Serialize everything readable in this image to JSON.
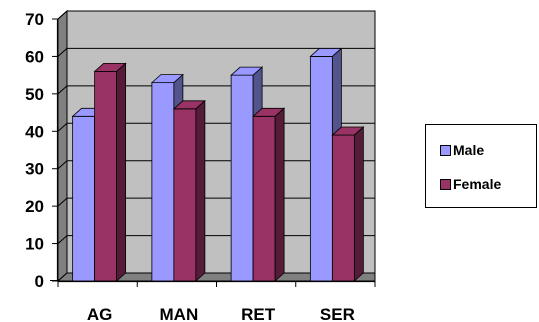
{
  "chart_data": {
    "type": "bar",
    "categories": [
      "AG",
      "MAN",
      "RET",
      "SER"
    ],
    "series": [
      {
        "name": "Male",
        "values": [
          44,
          53,
          55,
          60
        ],
        "color": "#9999ff"
      },
      {
        "name": "Female",
        "values": [
          56,
          46,
          44,
          39
        ],
        "color": "#993366"
      }
    ],
    "ylim": [
      0,
      70
    ],
    "yticks": [
      "0",
      "10",
      "20",
      "30",
      "40",
      "50",
      "60",
      "70"
    ],
    "grid": true,
    "legend": "right",
    "title": "",
    "xlabel": "",
    "ylabel": ""
  },
  "colors": {
    "plot_area": "#c0c0c0",
    "wall_side": "#808080",
    "floor": "#808080"
  }
}
